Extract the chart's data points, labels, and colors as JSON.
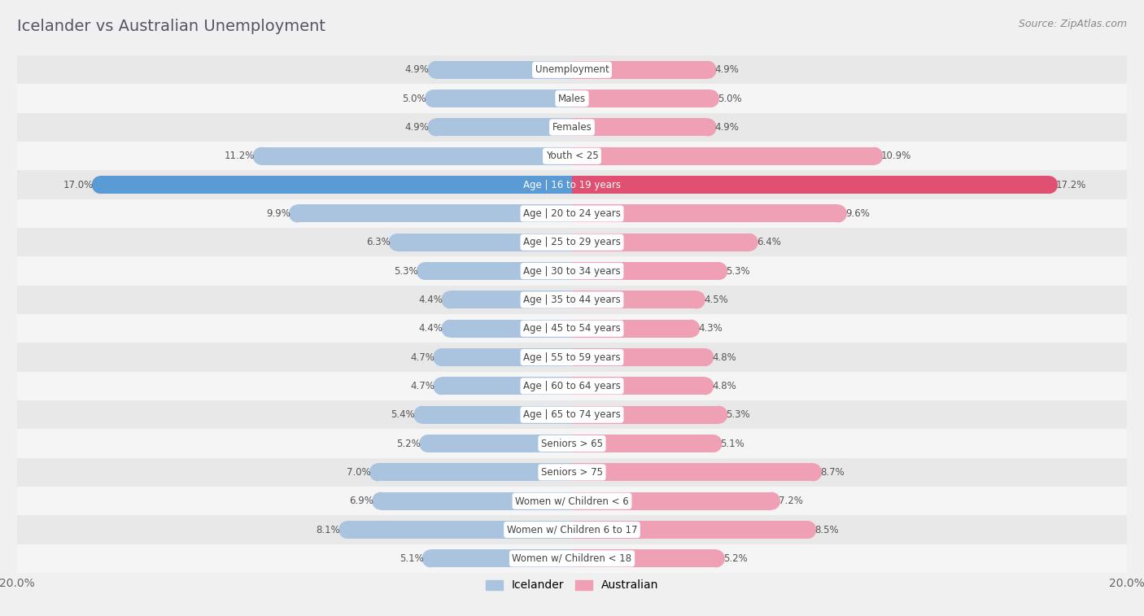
{
  "title": "Icelander vs Australian Unemployment",
  "source": "Source: ZipAtlas.com",
  "categories": [
    "Unemployment",
    "Males",
    "Females",
    "Youth < 25",
    "Age | 16 to 19 years",
    "Age | 20 to 24 years",
    "Age | 25 to 29 years",
    "Age | 30 to 34 years",
    "Age | 35 to 44 years",
    "Age | 45 to 54 years",
    "Age | 55 to 59 years",
    "Age | 60 to 64 years",
    "Age | 65 to 74 years",
    "Seniors > 65",
    "Seniors > 75",
    "Women w/ Children < 6",
    "Women w/ Children 6 to 17",
    "Women w/ Children < 18"
  ],
  "icelander": [
    4.9,
    5.0,
    4.9,
    11.2,
    17.0,
    9.9,
    6.3,
    5.3,
    4.4,
    4.4,
    4.7,
    4.7,
    5.4,
    5.2,
    7.0,
    6.9,
    8.1,
    5.1
  ],
  "australian": [
    4.9,
    5.0,
    4.9,
    10.9,
    17.2,
    9.6,
    6.4,
    5.3,
    4.5,
    4.3,
    4.8,
    4.8,
    5.3,
    5.1,
    8.7,
    7.2,
    8.5,
    5.2
  ],
  "icelander_color": "#aac4e0",
  "australian_color": "#f0a0b4",
  "icelander_color_highlight": "#5b9bd5",
  "australian_color_highlight": "#e05070",
  "highlight_idx": 4,
  "row_color_even": "#e8e8e8",
  "row_color_odd": "#f5f5f5",
  "background_color": "#f0f0f0",
  "max_value": 20.0,
  "legend_icelander": "Icelander",
  "legend_australian": "Australian",
  "title_color": "#555566",
  "source_color": "#888888",
  "value_color": "#555555"
}
